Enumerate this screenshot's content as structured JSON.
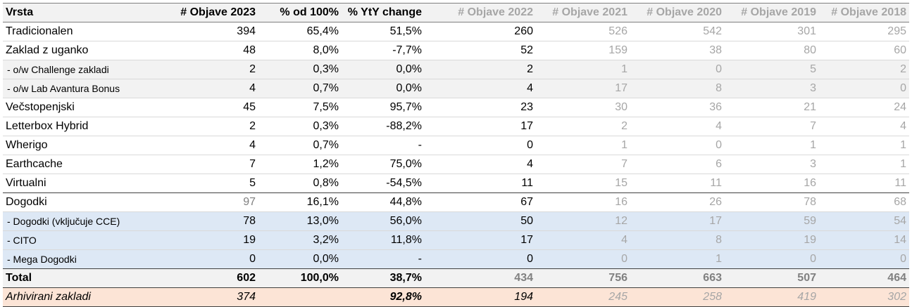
{
  "headers": [
    "Vrsta",
    "# Objave 2023",
    "% od 100%",
    "% YtY change",
    "# Objave 2022",
    "# Objave 2021",
    "# Objave 2020",
    "# Objave 2019",
    "# Objave 2018"
  ],
  "rows": [
    {
      "label": "Tradicionalen",
      "cells": [
        "394",
        "65,4%",
        "51,5%",
        "260",
        "526",
        "542",
        "301",
        "295"
      ]
    },
    {
      "label": "Zaklad z uganko",
      "cells": [
        "48",
        "8,0%",
        "-7,7%",
        "52",
        "159",
        "38",
        "80",
        "60"
      ]
    },
    {
      "label": " - o/w Challenge zakladi",
      "cells": [
        "2",
        "0,3%",
        "0,0%",
        "2",
        "1",
        "0",
        "5",
        "2"
      ]
    },
    {
      "label": " - o/w Lab Avantura Bonus",
      "cells": [
        "4",
        "0,7%",
        "0,0%",
        "4",
        "17",
        "8",
        "3",
        "0"
      ]
    },
    {
      "label": "Večstopenjski",
      "cells": [
        "45",
        "7,5%",
        "95,7%",
        "23",
        "30",
        "36",
        "21",
        "24"
      ]
    },
    {
      "label": "Letterbox Hybrid",
      "cells": [
        "2",
        "0,3%",
        "-88,2%",
        "17",
        "2",
        "4",
        "7",
        "4"
      ]
    },
    {
      "label": "Wherigo",
      "cells": [
        "4",
        "0,7%",
        "-",
        "0",
        "1",
        "0",
        "1",
        "1"
      ]
    },
    {
      "label": "Earthcache",
      "cells": [
        "7",
        "1,2%",
        "75,0%",
        "4",
        "7",
        "6",
        "3",
        "1"
      ]
    },
    {
      "label": "Virtualni",
      "cells": [
        "5",
        "0,8%",
        "-54,5%",
        "11",
        "15",
        "11",
        "16",
        "11"
      ]
    },
    {
      "label": "Dogodki",
      "cells": [
        "97",
        "16,1%",
        "44,8%",
        "67",
        "16",
        "26",
        "78",
        "68"
      ]
    },
    {
      "label": " - Dogodki (vključuje CCE)",
      "cells": [
        "78",
        "13,0%",
        "56,0%",
        "50",
        "12",
        "17",
        "59",
        "54"
      ]
    },
    {
      "label": " - CITO",
      "cells": [
        "19",
        "3,2%",
        "11,8%",
        "17",
        "4",
        "8",
        "19",
        "14"
      ]
    },
    {
      "label": " - Mega Dogodki",
      "cells": [
        "0",
        "0,0%",
        "-",
        "0",
        "0",
        "1",
        "0",
        "0"
      ]
    },
    {
      "label": "Total",
      "cells": [
        "602",
        "100,0%",
        "38,7%",
        "434",
        "756",
        "663",
        "507",
        "464"
      ]
    },
    {
      "label": "Arhivirani zakladi",
      "cells": [
        "374",
        "",
        "92,8%",
        "194",
        "245",
        "258",
        "419",
        "302"
      ]
    }
  ]
}
